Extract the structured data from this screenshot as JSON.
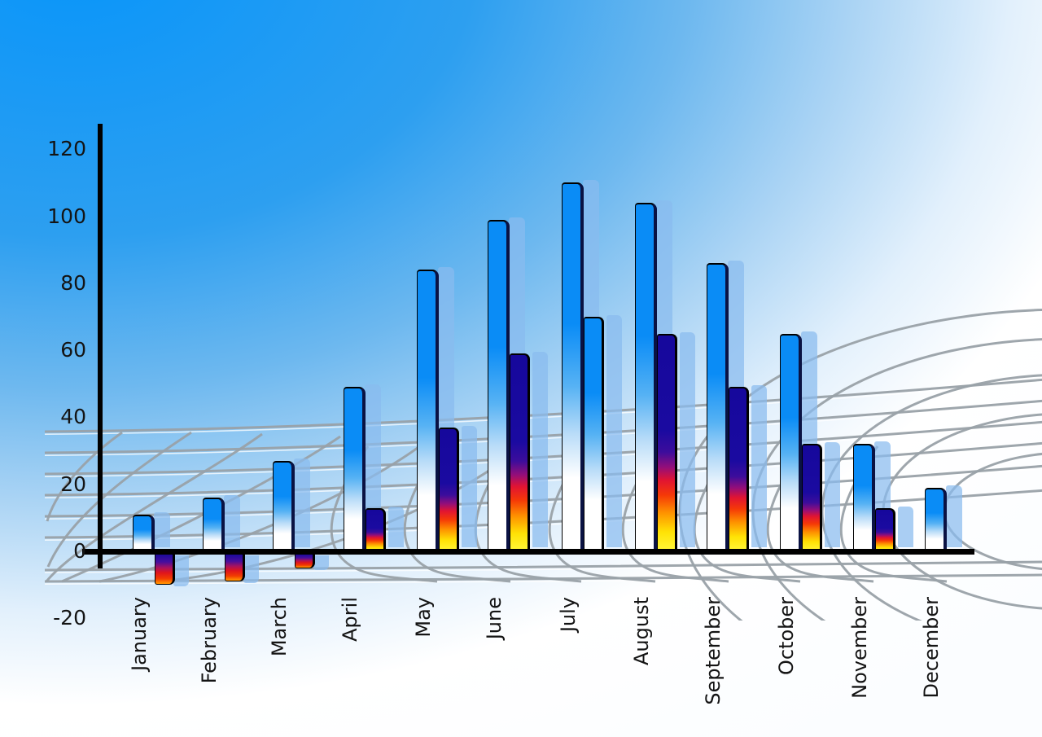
{
  "chart_data": {
    "type": "bar",
    "title": "",
    "categories": [
      "January",
      "February",
      "March",
      "April",
      "May",
      "June",
      "July",
      "August",
      "September",
      "October",
      "November",
      "December"
    ],
    "series": [
      {
        "name": "primary-blue-bars",
        "values": [
          11,
          16,
          27,
          49,
          84,
          99,
          110,
          104,
          86,
          65,
          32,
          19
        ]
      },
      {
        "name": "secondary-heat-bars",
        "values": [
          -10,
          -9,
          -5,
          13,
          37,
          59,
          70,
          65,
          49,
          32,
          13,
          null
        ]
      }
    ],
    "secondary_bar_style_overrides": {
      "July": "blue-gradient-instead-of-heat",
      "December": "no-secondary-bar"
    },
    "y_axis": {
      "ticks": [
        120,
        100,
        80,
        60,
        40,
        20,
        0,
        -20
      ],
      "min": -20,
      "max": 120
    },
    "x_axis": {
      "labels_rotated_degrees": -90
    },
    "legend_position": "none",
    "grid": "decorative-3d-perspective-mesh",
    "bar_effects": "each bar casts a translucent light-blue offset copy"
  },
  "colors": {
    "sky_top": "#0895fa",
    "bar_primary_blue": "#0a8cf6",
    "bar_bevel_navy": "#0a1243",
    "bar_shadow_blue": "rgba(137,187,238,0.72)",
    "heat_navy": "#16089c",
    "heat_red": "#f53907",
    "heat_yellow": "#ffe205",
    "grid_gray": "#99a1a8",
    "axis_black": "#000000",
    "label_text": "#141414"
  }
}
